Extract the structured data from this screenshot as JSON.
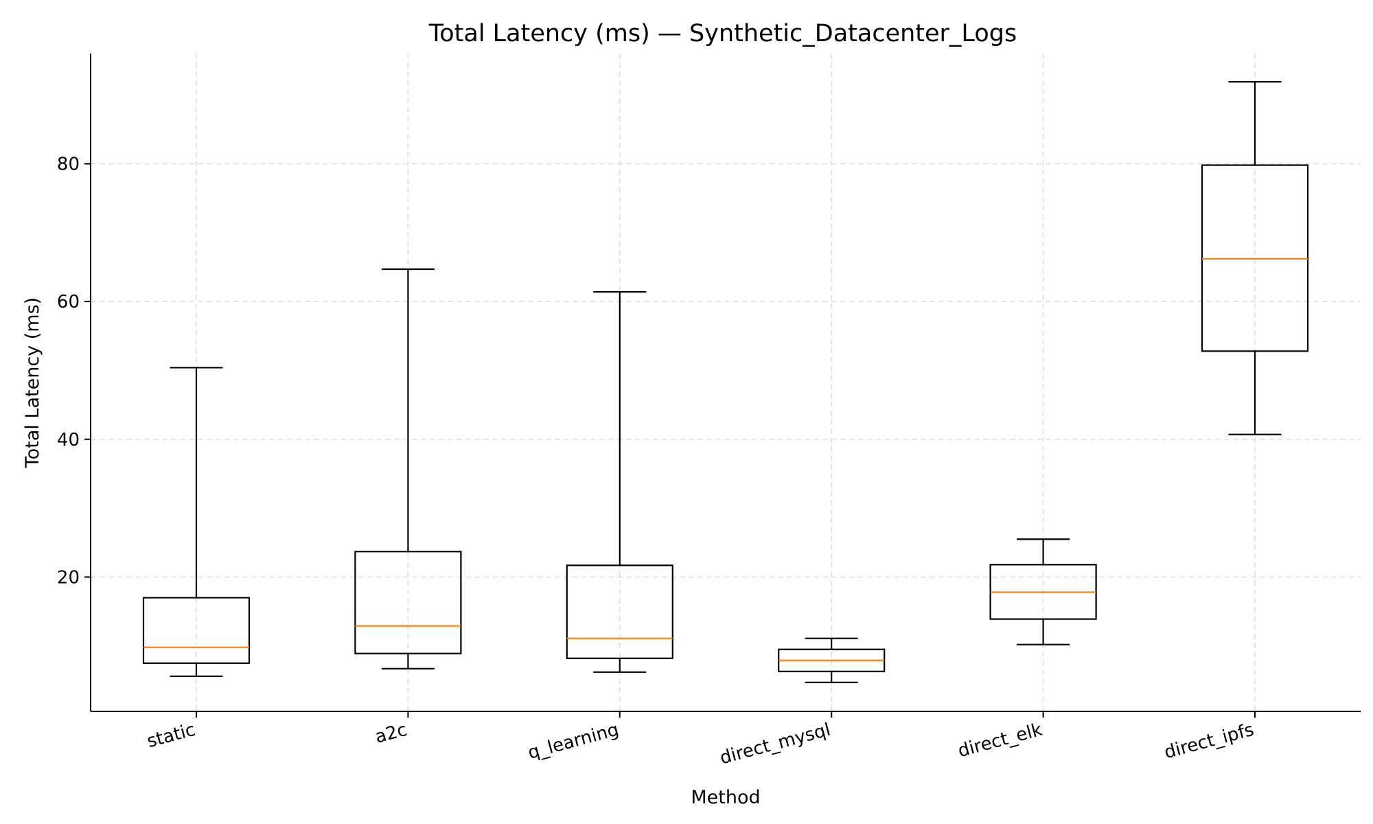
{
  "chart_data": {
    "type": "boxplot",
    "title": "Total Latency (ms) — Synthetic_Datacenter_Logs",
    "xlabel": "Method",
    "ylabel": "Total Latency (ms)",
    "ylim": [
      0.5,
      96
    ],
    "yticks": [
      20,
      40,
      60,
      80
    ],
    "grid": true,
    "categories": [
      "static",
      "a2c",
      "q_learning",
      "direct_mysql",
      "direct_elk",
      "direct_ipfs"
    ],
    "boxes": [
      {
        "whisker_low": 5.6,
        "q1": 7.5,
        "median": 9.8,
        "q3": 17.0,
        "whisker_high": 50.4
      },
      {
        "whisker_low": 6.7,
        "q1": 8.9,
        "median": 12.9,
        "q3": 23.7,
        "whisker_high": 64.7
      },
      {
        "whisker_low": 6.2,
        "q1": 8.2,
        "median": 11.1,
        "q3": 21.7,
        "whisker_high": 61.4
      },
      {
        "whisker_low": 4.7,
        "q1": 6.3,
        "median": 7.9,
        "q3": 9.5,
        "whisker_high": 11.1
      },
      {
        "whisker_low": 10.2,
        "q1": 13.9,
        "median": 17.8,
        "q3": 21.8,
        "whisker_high": 25.5
      },
      {
        "whisker_low": 40.7,
        "q1": 52.8,
        "median": 66.2,
        "q3": 79.8,
        "whisker_high": 91.9
      }
    ],
    "colors": {
      "box": "#000000",
      "median": "#ff7f0e",
      "grid": "#dddddd",
      "axis": "#000000"
    }
  }
}
